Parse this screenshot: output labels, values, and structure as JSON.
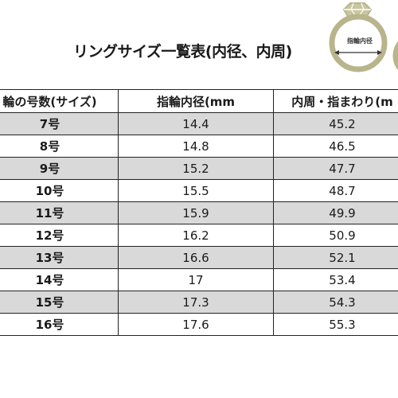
{
  "title": "リングサイズ一覧表(内径、内周)",
  "ring_diagram": {
    "label": "指輪内径",
    "ring_color": "#b8b58c",
    "gem_color": "#b8b58c"
  },
  "table": {
    "headers": [
      "輪の号数(サイズ)",
      "指輪内径(mm",
      "内周・指まわり(m"
    ],
    "rows": [
      {
        "size": "7号",
        "diameter": "14.4",
        "circumference": "45.2"
      },
      {
        "size": "8号",
        "diameter": "14.8",
        "circumference": "46.5"
      },
      {
        "size": "9号",
        "diameter": "15.2",
        "circumference": "47.7"
      },
      {
        "size": "10号",
        "diameter": "15.5",
        "circumference": "48.7"
      },
      {
        "size": "11号",
        "diameter": "15.9",
        "circumference": "49.9"
      },
      {
        "size": "12号",
        "diameter": "16.2",
        "circumference": "50.9"
      },
      {
        "size": "13号",
        "diameter": "16.6",
        "circumference": "52.1"
      },
      {
        "size": "14号",
        "diameter": "17",
        "circumference": "53.4"
      },
      {
        "size": "15号",
        "diameter": "17.3",
        "circumference": "54.3"
      },
      {
        "size": "16号",
        "diameter": "17.6",
        "circumference": "55.3"
      }
    ]
  },
  "colors": {
    "shaded_row": "#d9d9d9",
    "border": "#222222"
  }
}
